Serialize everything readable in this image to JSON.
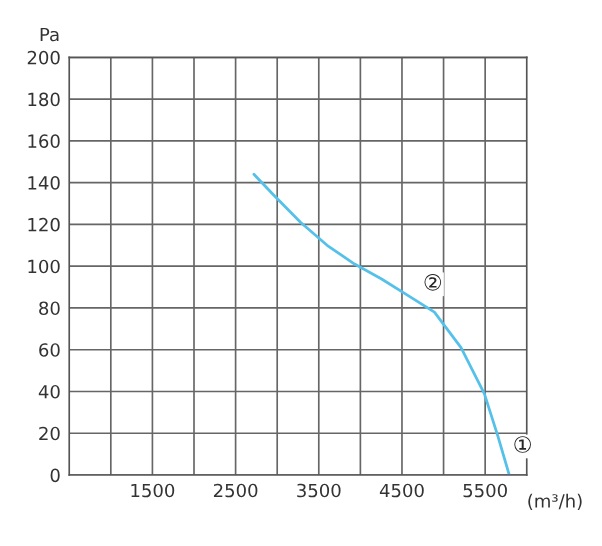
{
  "chart_data": {
    "type": "line",
    "ylabel": "Pa",
    "xlabel": "(m³/h)",
    "x": [
      2720,
      2960,
      3280,
      3600,
      3930,
      4250,
      4570,
      4890,
      5210,
      5490,
      5650,
      5790
    ],
    "series": [
      {
        "color": "#55c1ea",
        "values": [
          144,
          134,
          121,
          110,
          101,
          94,
          86,
          78,
          61,
          39,
          19,
          0
        ]
      }
    ],
    "xlim": [
      500,
      6000
    ],
    "xticks": [
      {
        "value": 1000,
        "label": null
      },
      1500,
      {
        "value": 2000,
        "label": null
      },
      2500,
      {
        "value": 3000,
        "label": null
      },
      3500,
      {
        "value": 4000,
        "label": null
      },
      4500,
      {
        "value": 5000,
        "label": null
      },
      5500
    ],
    "ylim": [
      0,
      200
    ],
    "yticks": [
      0,
      20,
      40,
      60,
      80,
      100,
      120,
      140,
      160,
      180,
      200
    ],
    "annotations": [
      {
        "text": "②",
        "x": 4570,
        "y": 86
      },
      {
        "text": "①",
        "x": 5650,
        "y": 19
      }
    ],
    "grid": true,
    "marker": "none",
    "line_style": "solid",
    "legend": false
  }
}
